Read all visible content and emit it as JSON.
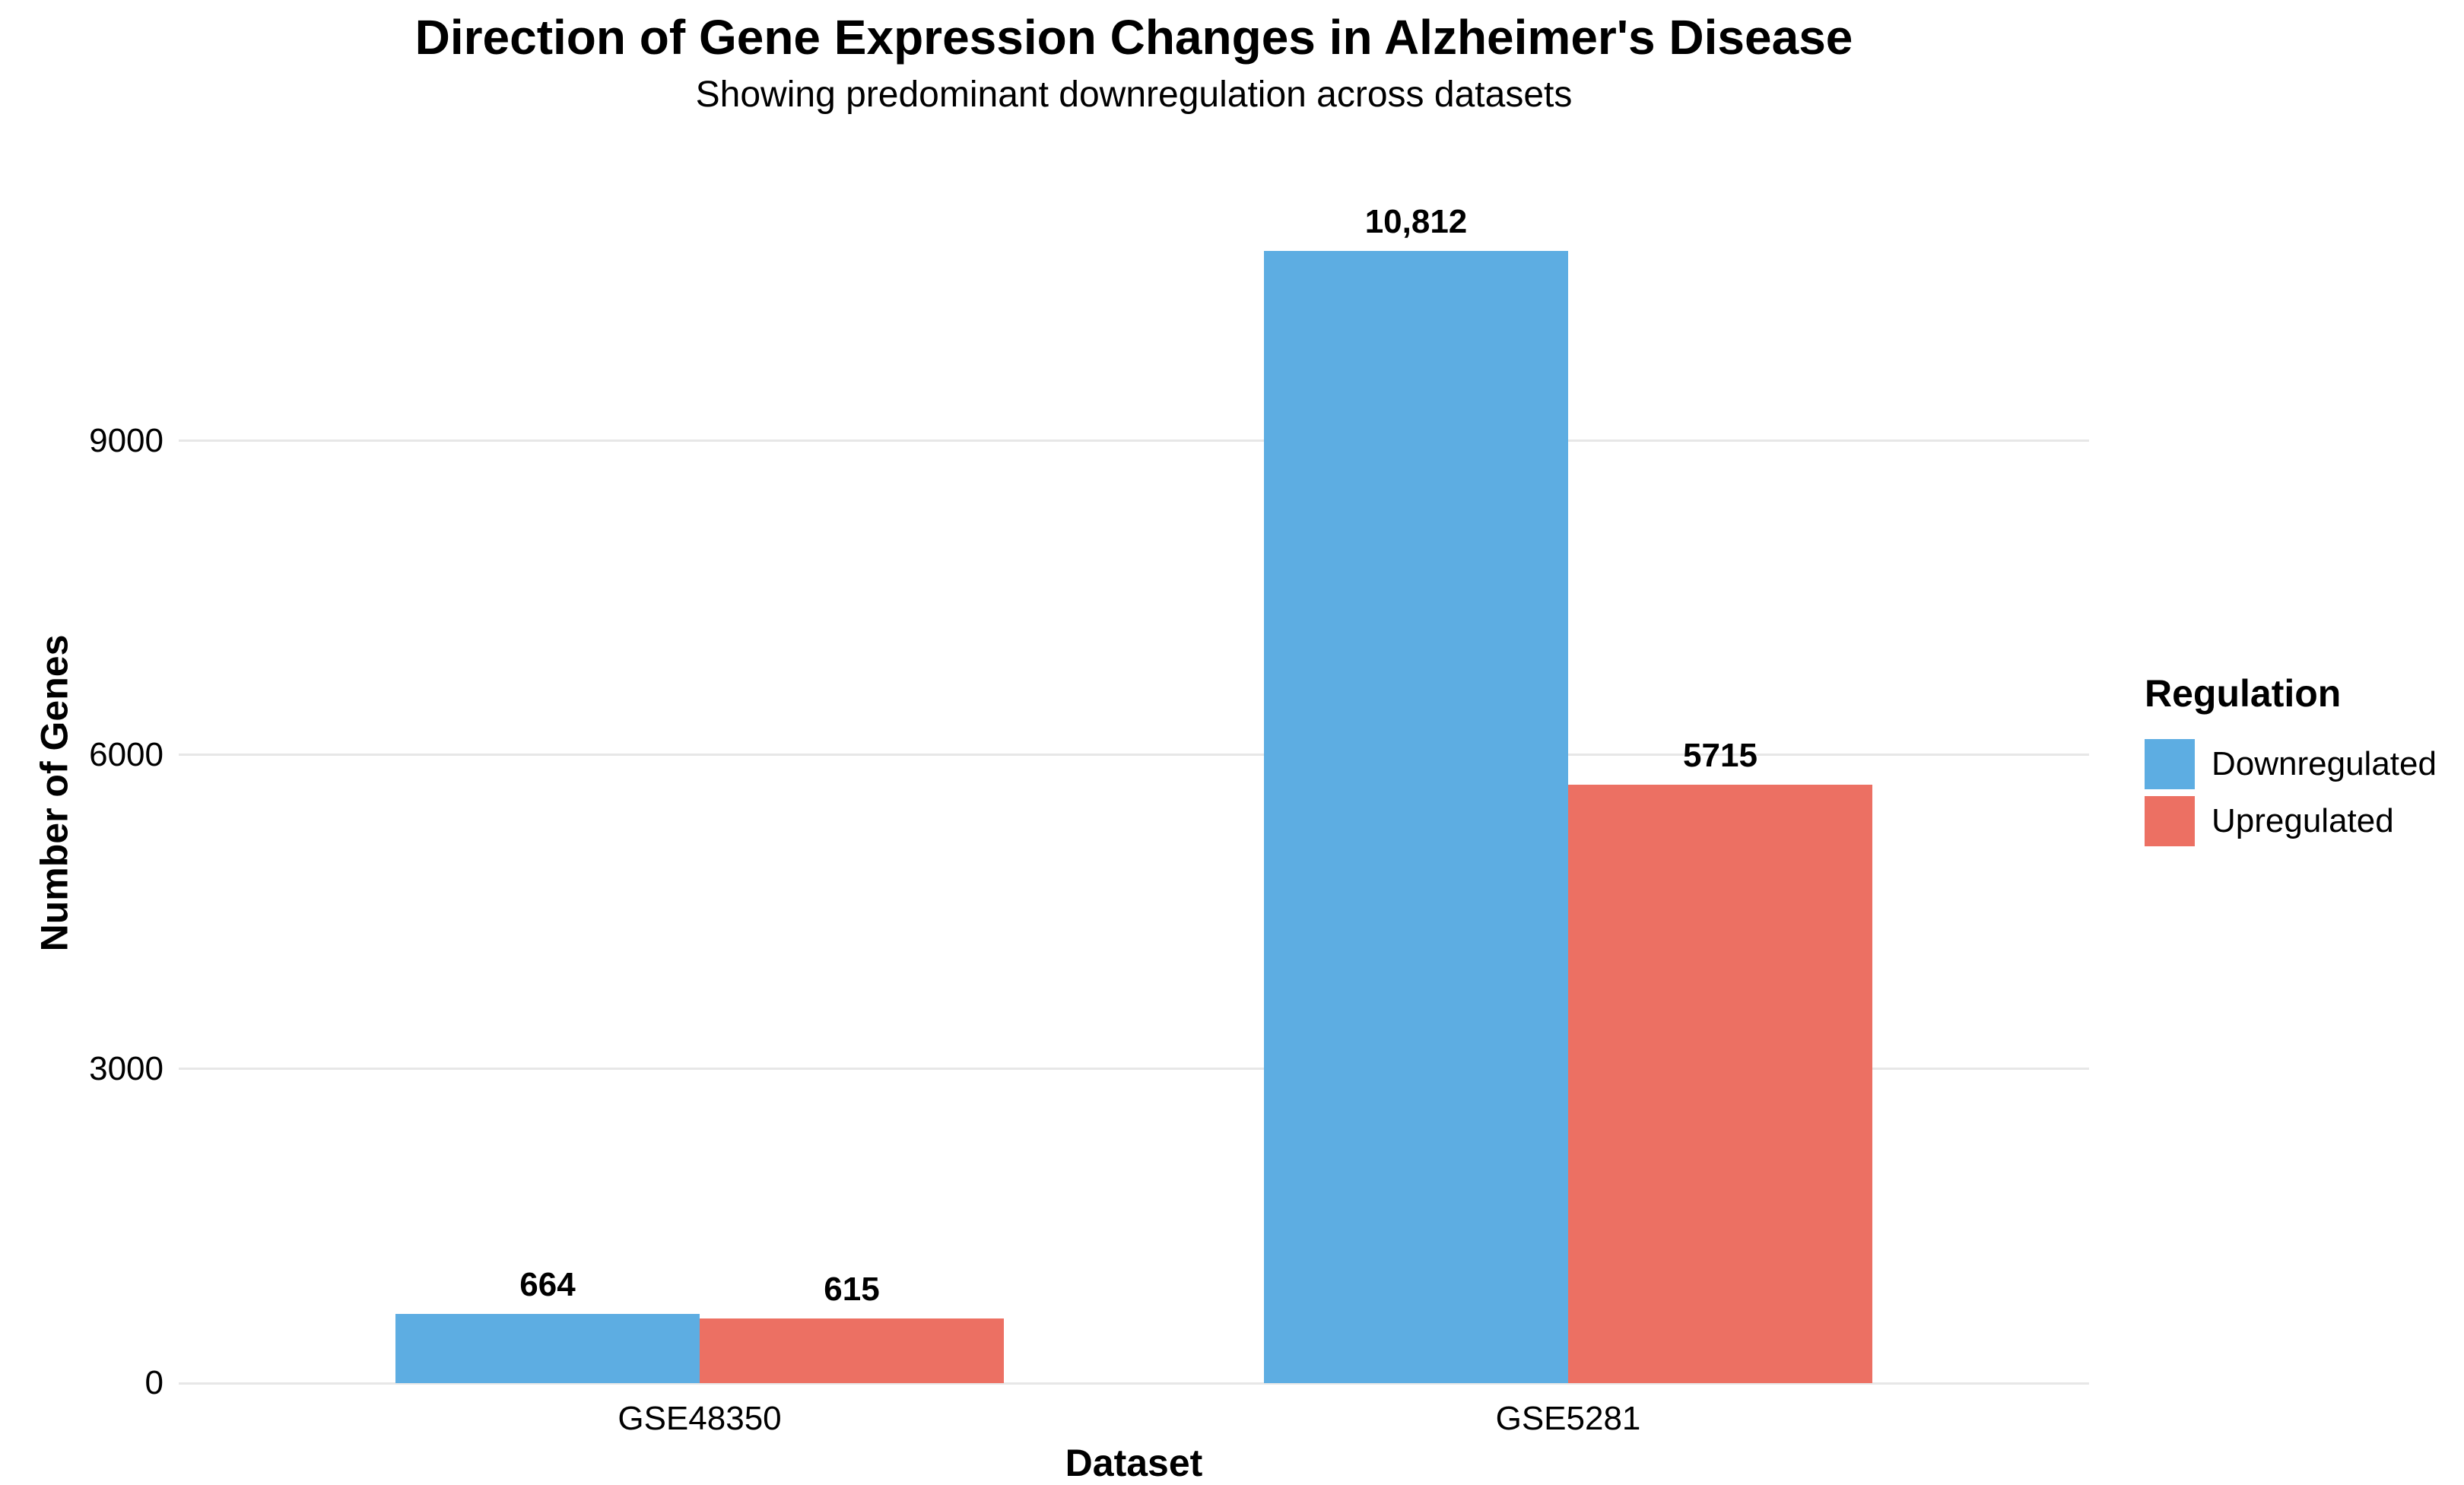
{
  "header": {
    "title": "Direction of Gene Expression Changes in Alzheimer's Disease",
    "subtitle": "Showing predominant downregulation across datasets"
  },
  "legend": {
    "title": "Regulation"
  },
  "chart_data": {
    "type": "bar",
    "title": "Direction of Gene Expression Changes in Alzheimer's Disease",
    "subtitle": "Showing predominant downregulation across datasets",
    "xlabel": "Dataset",
    "ylabel": "Number of Genes",
    "categories": [
      "GSE48350",
      "GSE5281"
    ],
    "series": [
      {
        "name": "Downregulated",
        "color": "#5DADE2",
        "values": [
          664,
          10812
        ],
        "value_labels": [
          "664",
          "10,812"
        ]
      },
      {
        "name": "Upregulated",
        "color": "#EC7063",
        "values": [
          615,
          5715
        ],
        "value_labels": [
          "615",
          "5715"
        ]
      }
    ],
    "ylim": [
      0,
      11353
    ],
    "yticks": [
      0,
      3000,
      6000,
      9000
    ],
    "ytick_labels": [
      "0",
      "3000",
      "6000",
      "9000"
    ],
    "grid": "horizontal-major",
    "grid_color": "#e7e7e7",
    "legend_title": "Regulation",
    "legend_position": "right",
    "background": "#ffffff"
  }
}
